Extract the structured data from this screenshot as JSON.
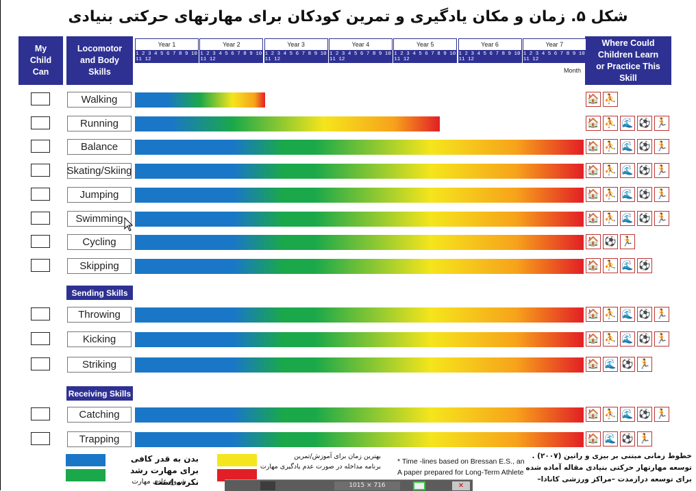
{
  "title": "شکل ۵. زمان و مکان یادگیری و تمرین کودکان برای مهارتهای حرکتی بنیادی",
  "headers": {
    "my_child": "My Child Can",
    "skills": "Locomotor and Body Skills",
    "where": "Where Could Children Learn or Practice This Skill",
    "month": "Month"
  },
  "years": [
    "Year 1",
    "Year 2",
    "Year 3",
    "Year 4",
    "Year 5",
    "Year 6",
    "Year 7"
  ],
  "month_numbers": "1 2 3 4 5 6 7 8 9 10 11 12",
  "colors": {
    "blue": "#1a77c7",
    "green": "#1aa84a",
    "yellow": "#f5e51c",
    "orange": "#f7a21b",
    "red": "#e21f26",
    "header": "#2e3192",
    "icon_border": "#b33333"
  },
  "sections": {
    "sending": "Sending Skills",
    "receiving": "Receiving Skills"
  },
  "skills": [
    {
      "name": "Walking",
      "end_fraction": 0.29,
      "icons": [
        "home-icon",
        "playground-icon"
      ]
    },
    {
      "name": "Running",
      "end_fraction": 0.68,
      "icons": [
        "home-icon",
        "playground-icon",
        "pool-icon",
        "field-icon",
        "gym-icon"
      ]
    },
    {
      "name": "Balance",
      "end_fraction": 1.0,
      "icons": [
        "home-icon",
        "playground-icon",
        "pool-icon",
        "field-icon",
        "gym-icon"
      ]
    },
    {
      "name": "Skating/Skiing",
      "end_fraction": 1.0,
      "icons": [
        "home-icon",
        "playground-icon",
        "pool-icon",
        "field-icon",
        "gym-icon"
      ]
    },
    {
      "name": "Jumping",
      "end_fraction": 1.0,
      "icons": [
        "home-icon",
        "playground-icon",
        "pool-icon",
        "field-icon",
        "gym-icon"
      ]
    },
    {
      "name": "Swimming",
      "end_fraction": 1.0,
      "icons": [
        "home-icon",
        "playground-icon",
        "pool-icon",
        "field-icon",
        "gym-icon"
      ]
    },
    {
      "name": "Cycling",
      "end_fraction": 1.0,
      "icons": [
        "home-icon",
        "field-icon",
        "gym-icon"
      ]
    },
    {
      "name": "Skipping",
      "end_fraction": 1.0,
      "icons": [
        "home-icon",
        "playground-icon",
        "pool-icon",
        "field-icon"
      ]
    },
    {
      "name": "Throwing",
      "end_fraction": 1.0,
      "icons": [
        "home-icon",
        "playground-icon",
        "pool-icon",
        "field-icon",
        "gym-icon"
      ]
    },
    {
      "name": "Kicking",
      "end_fraction": 1.0,
      "icons": [
        "home-icon",
        "playground-icon",
        "pool-icon",
        "field-icon",
        "gym-icon"
      ]
    },
    {
      "name": "Striking",
      "end_fraction": 1.0,
      "icons": [
        "home-icon",
        "pool-icon",
        "field-icon",
        "gym-icon"
      ]
    },
    {
      "name": "Catching",
      "end_fraction": 1.0,
      "icons": [
        "home-icon",
        "playground-icon",
        "pool-icon",
        "field-icon",
        "gym-icon"
      ]
    },
    {
      "name": "Trapping",
      "end_fraction": 1.0,
      "icons": [
        "home-icon",
        "pool-icon",
        "field-icon",
        "gym-icon"
      ]
    }
  ],
  "legend": {
    "blue_green_title": "بدن به قدر کافی برای مهارت رشد نکرده است",
    "blue_green_sub": "شروع عادی مهارت",
    "yellow_red_title": "بهترین زمان برای آموزش/تمرین",
    "yellow_red_sub": "برنامه مداخله در صورت عدم یادگیری مهارت",
    "footnote1": "* Time -lines based on Bressan E.S., and Rath",
    "footnote2": "A paper prepared for Long-Term Athlete De",
    "persian_note1": "خطوط زمانی مبتنی بر بیزی و راتین (۲۰۰۷) .",
    "persian_note2": "توسعه مهارتهار حرکتی بنیادی مقاله آماده شده",
    "persian_note3": "برای توسعه درازمدت –مراکز ورزشی کانادا–"
  },
  "taskbar": {
    "time": "1015 × 716"
  }
}
